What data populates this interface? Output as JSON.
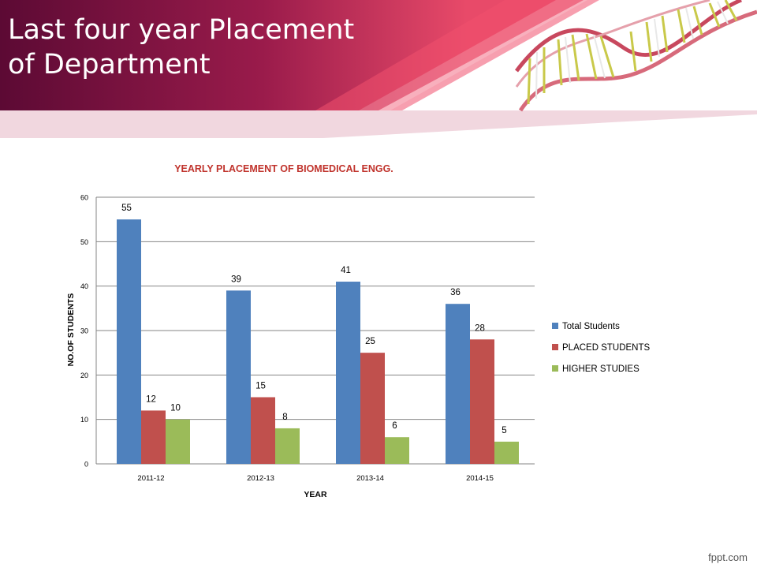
{
  "slide": {
    "title_line1": "Last four year Placement",
    "title_line2": "of Department"
  },
  "watermark": "fppt.com",
  "colors": {
    "banner_dark": "#5c0a34",
    "banner_mid": "#a01f4e",
    "banner_accent": "#f0506e",
    "series_total": "#4f81bd",
    "series_placed": "#c0504d",
    "series_higher": "#9bbb59",
    "title_red": "#c0332c"
  },
  "chart_data": {
    "type": "bar",
    "title": "YEARLY PLACEMENT OF BIOMEDICAL ENGG.",
    "xlabel": "YEAR",
    "ylabel": "NO.OF STUDENTS",
    "ylim": [
      0,
      60
    ],
    "yticks": [
      0,
      10,
      20,
      30,
      40,
      50,
      60
    ],
    "grid": true,
    "legend_position": "right",
    "categories": [
      "2011-12",
      "2012-13",
      "2013-14",
      "2014-15"
    ],
    "series": [
      {
        "name": "Total Students",
        "values": [
          55,
          39,
          41,
          36
        ],
        "color": "#4f81bd"
      },
      {
        "name": "PLACED STUDENTS",
        "values": [
          12,
          15,
          25,
          28
        ],
        "color": "#c0504d"
      },
      {
        "name": "HIGHER STUDIES",
        "values": [
          10,
          8,
          6,
          5
        ],
        "color": "#9bbb59"
      }
    ]
  }
}
